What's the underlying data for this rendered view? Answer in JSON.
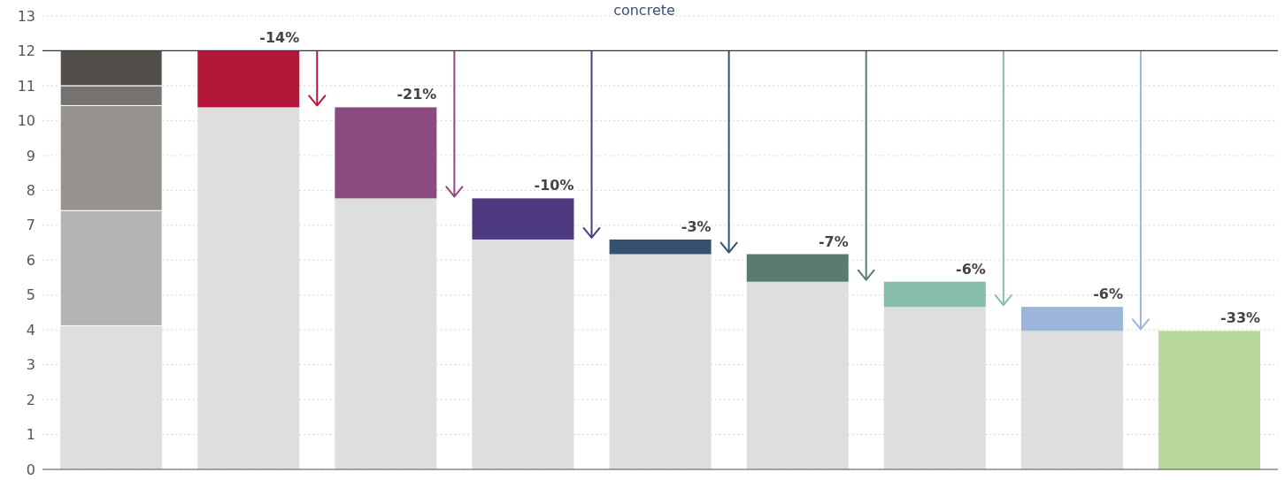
{
  "chart_data": {
    "type": "bar",
    "stacked": true,
    "categories": [
      null,
      null,
      null,
      null,
      null,
      null,
      null,
      null,
      null
    ],
    "series": [
      {
        "color": "#dedede",
        "values": [
          4.12,
          10.38,
          7.77,
          6.59,
          6.17,
          5.38,
          4.66,
          3.97,
          null
        ]
      },
      {
        "color": "#b5b4b2",
        "values": [
          3.3,
          null,
          null,
          null,
          null,
          null,
          null,
          null,
          null
        ]
      },
      {
        "color": "#96928d",
        "values": [
          3.01,
          null,
          null,
          null,
          null,
          null,
          null,
          null,
          null
        ]
      },
      {
        "color": "#767370",
        "values": [
          0.57,
          null,
          null,
          null,
          null,
          null,
          null,
          null,
          null
        ]
      },
      {
        "color": "#524f4b",
        "values": [
          1.0,
          null,
          null,
          null,
          null,
          null,
          null,
          null,
          null
        ]
      },
      {
        "colors": [
          "#b5173a",
          "#b5173a",
          "#8b4a80",
          "#4e3a80",
          "#36506f",
          "#5a7b72",
          "#86bcab",
          "#9bb6d8",
          "#b8d99b"
        ],
        "values": [
          null,
          1.62,
          2.61,
          1.18,
          0.42,
          0.79,
          0.72,
          0.69,
          3.97
        ]
      }
    ],
    "ylim": [
      0,
      13
    ],
    "yticks": [
      0,
      1,
      2,
      3,
      4,
      5,
      6,
      7,
      8,
      9,
      10,
      11,
      12,
      13
    ],
    "grid": "y",
    "ref_lines": [
      {
        "axis": "y",
        "value": 12,
        "color": "#333333"
      }
    ],
    "annotations": [
      "concrete",
      {
        "text": "-14%",
        "y": 12
      },
      {
        "text": "-21%",
        "y": 10.38
      },
      {
        "text": "-10%",
        "y": 7.77
      },
      {
        "text": "-3%",
        "y": 6.59
      },
      {
        "text": "-7%",
        "y": 6.17
      },
      {
        "text": "-6%",
        "y": 5.38
      },
      {
        "text": "-6%",
        "y": 4.66
      },
      {
        "text": "-33%",
        "y": 3.97
      }
    ]
  }
}
